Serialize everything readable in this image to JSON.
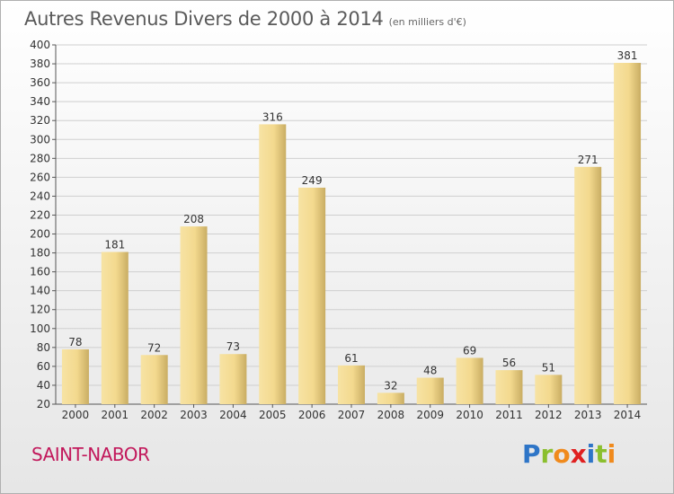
{
  "title": "Autres Revenus Divers de 2000 à 2014",
  "subtitle": "(en milliers d'€)",
  "city": "SAINT-NABOR",
  "logo": {
    "letters": [
      {
        "char": "P",
        "color": "#2e75c7"
      },
      {
        "char": "r",
        "color": "#8bbf2e"
      },
      {
        "char": "o",
        "color": "#f08a1c"
      },
      {
        "char": "x",
        "color": "#e02020"
      },
      {
        "char": "i",
        "color": "#2e75c7"
      },
      {
        "char": "t",
        "color": "#8bbf2e"
      },
      {
        "char": "i",
        "color": "#f08a1c"
      }
    ]
  },
  "colors": {
    "bar_light": "#f7e3a4",
    "bar_dark": "#c9ad63",
    "city": "#c2185b"
  },
  "chart_data": {
    "type": "bar",
    "title": "Autres Revenus Divers de 2000 à 2014",
    "categories": [
      "2000",
      "2001",
      "2002",
      "2003",
      "2004",
      "2005",
      "2006",
      "2007",
      "2008",
      "2009",
      "2010",
      "2011",
      "2012",
      "2013",
      "2014"
    ],
    "values": [
      78,
      181,
      72,
      208,
      73,
      316,
      249,
      61,
      32,
      48,
      69,
      56,
      51,
      271,
      381
    ],
    "ylim": [
      20,
      400
    ],
    "yticks": [
      20,
      40,
      60,
      80,
      100,
      120,
      140,
      160,
      180,
      200,
      220,
      240,
      260,
      280,
      300,
      320,
      340,
      360,
      380,
      400
    ],
    "grid": true
  }
}
